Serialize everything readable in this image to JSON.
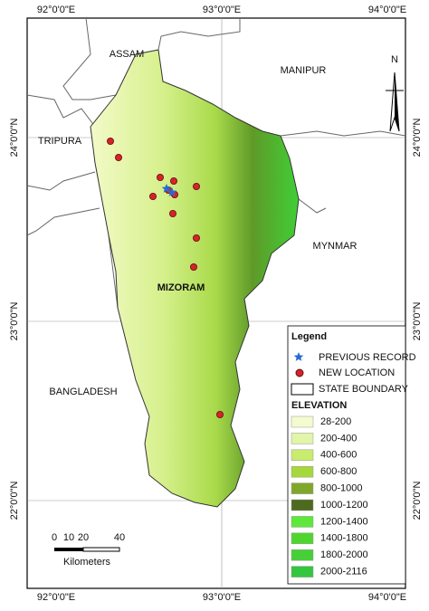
{
  "frame": {
    "top_labels": [
      "92°0'0\"E",
      "93°0'0\"E",
      "94°0'0\"E"
    ],
    "bottom_labels": [
      "92°0'0\"E",
      "93°0'0\"E",
      "94°0'0\"E"
    ],
    "left_labels": [
      "24°0'0\"N",
      "23°0'0\"N",
      "22°0'0\"N"
    ],
    "right_labels": [
      "24°0'0\"N",
      "23°0'0\"N",
      "22°0'0\"N"
    ]
  },
  "regions": [
    "ASSAM",
    "MANIPUR",
    "TRIPURA",
    "MYNMAR",
    "BANGLADESH",
    "MIZORAM"
  ],
  "north": "N",
  "scale": {
    "ticks": [
      0,
      10,
      20,
      40
    ],
    "unit": "Kilometers"
  },
  "legend": {
    "title": "Legend",
    "symbols": [
      "PREVIOUS RECORD",
      "NEW LOCATION",
      "STATE BOUNDARY"
    ],
    "elevation_title": "ELEVATION",
    "elevation": [
      {
        "label": "28-200",
        "color": "#f5fbd0"
      },
      {
        "label": "200-400",
        "color": "#e2f5a8"
      },
      {
        "label": "400-600",
        "color": "#c8ec6e"
      },
      {
        "label": "600-800",
        "color": "#a6d83c"
      },
      {
        "label": "800-1000",
        "color": "#7fa82a"
      },
      {
        "label": "1000-1200",
        "color": "#4d6b1e"
      },
      {
        "label": "1200-1400",
        "color": "#5ee83a"
      },
      {
        "label": "1400-1800",
        "color": "#4fd62e"
      },
      {
        "label": "1800-2000",
        "color": "#47cf38"
      },
      {
        "label": "2000-2116",
        "color": "#33c63f"
      }
    ]
  }
}
